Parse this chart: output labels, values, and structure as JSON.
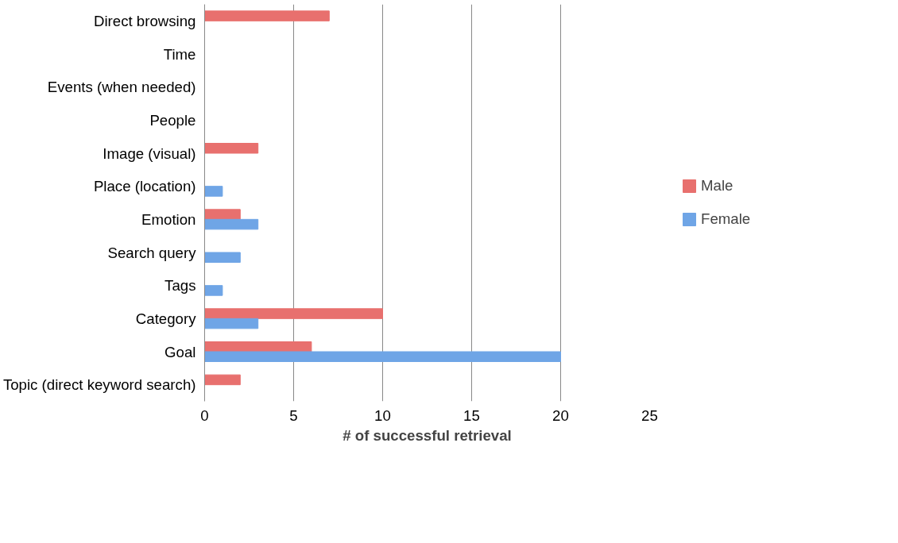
{
  "chart_data": {
    "type": "bar",
    "orientation": "horizontal",
    "xlabel": "# of successful retrieval",
    "categories": [
      "Direct browsing",
      "Time",
      "Events (when needed)",
      "People",
      "Image (visual)",
      "Place (location)",
      "Emotion",
      "Search query",
      "Tags",
      "Category",
      "Goal",
      "Topic (direct keyword search)"
    ],
    "series": [
      {
        "name": "Male",
        "color": "#e8706e",
        "values": [
          7,
          null,
          null,
          null,
          3,
          null,
          2,
          null,
          null,
          10,
          6,
          2
        ]
      },
      {
        "name": "Female",
        "color": "#6fa5e6",
        "values": [
          null,
          null,
          null,
          null,
          null,
          1,
          3,
          2,
          1,
          3,
          20,
          null
        ]
      }
    ],
    "xlim": [
      0,
      25
    ],
    "xticks": [
      0,
      5,
      10,
      15,
      20,
      25
    ],
    "grid": "x",
    "legend": "right"
  }
}
